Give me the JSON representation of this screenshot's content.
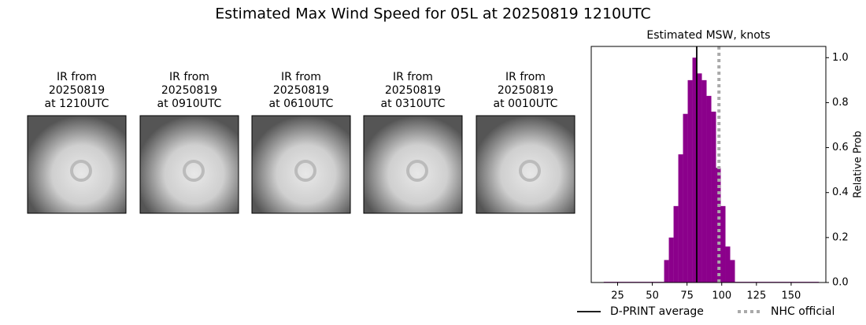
{
  "title": "Estimated Max Wind Speed for 05L at 20250819 1210UTC",
  "ir_panels": [
    {
      "lines": [
        "IR from",
        "20250819",
        "at 1210UTC"
      ]
    },
    {
      "lines": [
        "IR from",
        "20250819",
        "at 0910UTC"
      ]
    },
    {
      "lines": [
        "IR from",
        "20250819",
        "at 0610UTC"
      ]
    },
    {
      "lines": [
        "IR from",
        "20250819",
        "at 0310UTC"
      ]
    },
    {
      "lines": [
        "IR from",
        "20250819",
        "at 0010UTC"
      ]
    }
  ],
  "chart_data": {
    "type": "histogram",
    "title": "Estimated MSW, knots",
    "y_label": "Relative Prob",
    "color": "#8b008b",
    "bins": [
      15,
      58.5,
      61.9,
      65.3,
      68.7,
      72.1,
      75.5,
      78.9,
      82.3,
      85.7,
      89.1,
      92.5,
      95.9,
      99.3,
      102.7,
      106.1,
      109.5,
      170
    ],
    "counts": [
      0.003,
      0.1,
      0.2,
      0.34,
      0.57,
      0.75,
      0.9,
      1.0,
      0.93,
      0.9,
      0.83,
      0.76,
      0.51,
      0.34,
      0.16,
      0.1,
      0.003
    ],
    "xlim": [
      6,
      175
    ],
    "xticks": [
      25,
      50,
      75,
      100,
      125,
      150
    ],
    "ylim": [
      0,
      1.05
    ],
    "yticks": [
      {
        "value": 0,
        "label": "0.0"
      },
      {
        "value": 0.2,
        "label": "0.2"
      },
      {
        "value": 0.4,
        "label": "0.4"
      },
      {
        "value": 0.6,
        "label": "0.6"
      },
      {
        "value": 0.8,
        "label": "0.8"
      },
      {
        "value": 1.0,
        "label": "1.0"
      }
    ],
    "reference_lines": [
      {
        "name": "D-PRINT average",
        "value": 82,
        "color": "#000000",
        "dashed": false
      },
      {
        "name": "NHC official",
        "value": 98,
        "color": "#aaaaaa",
        "dashed": true
      }
    ],
    "legend": "bottom"
  }
}
